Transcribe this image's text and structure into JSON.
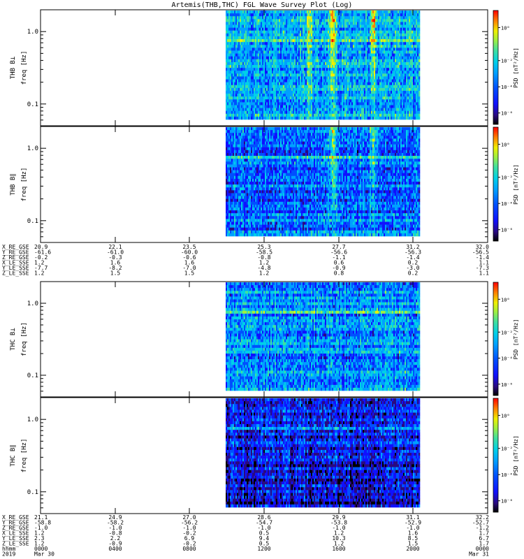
{
  "title": "Artemis(THB,THC) FGL Wave Survey Plot (Log)",
  "colors": {
    "palette": [
      "#000000",
      "#2a0a80",
      "#1010ff",
      "#0050ff",
      "#00a0ff",
      "#00d0e8",
      "#40e0a0",
      "#a0f040",
      "#f0f000",
      "#ff8000",
      "#ff0000"
    ]
  },
  "chart_data": [
    {
      "type": "heatmap",
      "id": "thb-bperp",
      "ylabel": "THB B⊥",
      "yunit": "freq [Hz]",
      "yscale": "log",
      "yticks": [
        "1.0",
        "0.1"
      ],
      "colorbar": {
        "label": "PSD [nT²/Hz]",
        "ticks": [
          "10⁰",
          "10⁻²",
          "10⁻⁴",
          "10⁻⁶"
        ]
      },
      "note_ranges": {
        "ylim": [
          0.05,
          2.0
        ],
        "data_x_fraction": [
          0.42,
          0.8
        ]
      },
      "features": [
        {
          "x": 0.55,
          "strength": 1.0
        },
        {
          "x": 0.76,
          "strength": 0.9
        },
        {
          "x": 0.43,
          "strength": 0.6
        }
      ],
      "base_level": 0.42
    },
    {
      "type": "heatmap",
      "id": "thb-bpar",
      "ylabel": "THB B∥",
      "yunit": "freq [Hz]",
      "yscale": "log",
      "yticks": [
        "1.0",
        "0.1"
      ],
      "colorbar": {
        "label": "PSD [nT²/Hz]",
        "ticks": [
          "10⁰",
          "10⁻²",
          "10⁻⁴",
          "10⁻⁶"
        ]
      },
      "features": [
        {
          "x": 0.55,
          "strength": 1.0
        },
        {
          "x": 0.76,
          "strength": 0.8
        }
      ],
      "base_level": 0.33
    },
    {
      "type": "heatmap",
      "id": "thc-bperp",
      "ylabel": "THC B⊥",
      "yunit": "freq [Hz]",
      "yscale": "log",
      "yticks": [
        "1.0",
        "0.1"
      ],
      "colorbar": {
        "label": "PSD [nT²/Hz]",
        "ticks": [
          "10⁰",
          "10⁻²",
          "10⁻⁴",
          "10⁻⁶"
        ]
      },
      "features": [],
      "base_level": 0.38
    },
    {
      "type": "heatmap",
      "id": "thc-bpar",
      "ylabel": "THC B∥",
      "yunit": "freq [Hz]",
      "yscale": "log",
      "yticks": [
        "1.0",
        "0.1"
      ],
      "colorbar": {
        "label": "PSD [nT²/Hz]",
        "ticks": [
          "10⁰",
          "10⁻²",
          "10⁻⁴",
          "10⁻⁶"
        ]
      },
      "features": [],
      "base_level": 0.26
    }
  ],
  "ephemeris_thb": {
    "labels": [
      "X_RE_GSE",
      "Y_RE_GSE",
      "Z_RE_GSE",
      "X_LE_SSE",
      "Y_LE_SSE",
      "Z_LE_SSE"
    ],
    "rows": [
      [
        "20.9",
        "22.1",
        "23.5",
        "25.3",
        "27.7",
        "31.2",
        "32.0"
      ],
      [
        "-61.6",
        "-61.0",
        "-60.0",
        "-58.5",
        "-56.6",
        "-56.3",
        "-56.5"
      ],
      [
        "-0.2",
        "-0.3",
        "-0.6",
        "-0.8",
        "-1.1",
        "-1.4",
        "-1.4"
      ],
      [
        "1.2",
        "1.6",
        "1.6",
        "1.2",
        "0.6",
        "0.2",
        "1.1"
      ],
      [
        "-7.7",
        "-8.2",
        "-7.0",
        "-4.8",
        "-0.9",
        "-3.0",
        "-7.3"
      ],
      [
        "1.2",
        "1.5",
        "1.5",
        "1.2",
        "0.8",
        "0.2",
        "1.1"
      ]
    ]
  },
  "ephemeris_thc": {
    "labels": [
      "X_RE_GSE",
      "Y_RE_GSE",
      "Z_RE_GSE",
      "X_LE_SSE",
      "Y_LE_SSE",
      "Z_LE_SSE",
      "hhmm",
      "2019"
    ],
    "rows": [
      [
        "21.1",
        "24.9",
        "27.0",
        "28.6",
        "29.9",
        "31.1",
        "32.2"
      ],
      [
        "-58.8",
        "-58.2",
        "-56.2",
        "-54.7",
        "-53.8",
        "-52.9",
        "-52.7"
      ],
      [
        "-1.0",
        "-1.0",
        "-1.0",
        "-1.0",
        "-1.0",
        "-1.0",
        "-1.2"
      ],
      [
        "1.2",
        "-0.8",
        "-0.2",
        "0.5",
        "1.2",
        "1.6",
        "1.7"
      ],
      [
        "2.3",
        "2.2",
        "6.9",
        "9.4",
        "10.3",
        "8.5",
        "6.7"
      ],
      [
        "1.2",
        "-0.9",
        "-0.2",
        "0.5",
        "1.2",
        "1.5",
        "1.7"
      ],
      [
        "0000",
        "0400",
        "0800",
        "1200",
        "1600",
        "2000",
        "0000"
      ],
      [
        "Mar 30",
        "",
        "",
        "",
        "",
        "",
        "Mar 31"
      ]
    ]
  }
}
